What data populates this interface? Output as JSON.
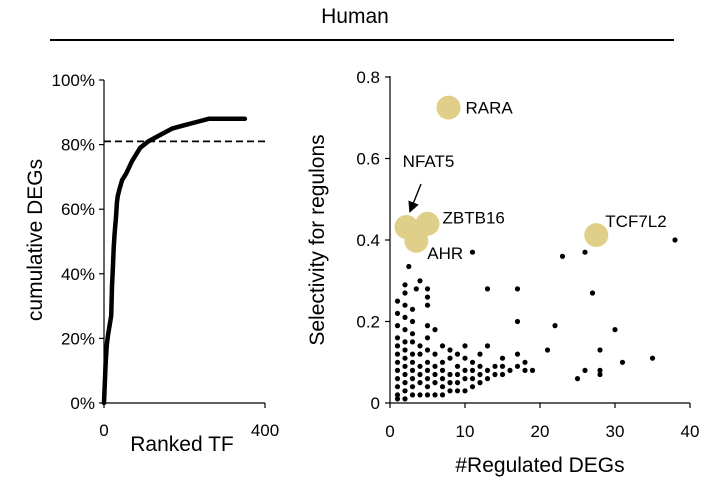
{
  "figure": {
    "title": "Human"
  },
  "chart_data": [
    {
      "type": "line",
      "name": "cumulative",
      "xlabel": "Ranked TF",
      "ylabel": "cumulative DEGs",
      "xlim": [
        0,
        400
      ],
      "ylim": [
        0,
        100
      ],
      "x_ticks": [
        "0",
        "400"
      ],
      "y_ticks": [
        "0%",
        "20%",
        "40%",
        "60%",
        "80%",
        "100%"
      ],
      "reference_line": {
        "y": 81,
        "style": "dashed"
      },
      "series": [
        {
          "name": "cumulative DEGs",
          "x": [
            0,
            2,
            4,
            7,
            10,
            14,
            18,
            20,
            22,
            24,
            26,
            28,
            30,
            32,
            34,
            38,
            45,
            55,
            70,
            90,
            110,
            140,
            170,
            200,
            230,
            260,
            300,
            350
          ],
          "y": [
            0,
            6,
            12,
            18,
            21,
            24,
            27,
            36,
            42,
            48,
            52,
            55,
            58,
            62,
            64,
            66,
            69,
            71,
            75,
            79,
            81,
            83,
            85,
            86,
            87,
            88,
            88,
            88
          ]
        }
      ]
    },
    {
      "type": "scatter",
      "name": "selectivity",
      "xlabel": "#Regulated DEGs",
      "ylabel": "Selectivity for regulons",
      "xlim": [
        0,
        40
      ],
      "ylim": [
        0,
        0.8
      ],
      "x_ticks": [
        "0",
        "10",
        "20",
        "30",
        "40"
      ],
      "y_ticks": [
        "0",
        "0.2",
        "0.4",
        "0.6",
        "0.8"
      ],
      "highlighted": [
        {
          "label": "RARA",
          "x": 7.8,
          "y": 0.725
        },
        {
          "label": "NFAT5",
          "x": 2.2,
          "y": 0.432
        },
        {
          "label": "ZBTB16",
          "x": 5.0,
          "y": 0.44
        },
        {
          "label": "AHR",
          "x": 3.5,
          "y": 0.398
        },
        {
          "label": "TCF7L2",
          "x": 27.5,
          "y": 0.412
        }
      ],
      "points": [
        [
          1,
          0.01
        ],
        [
          1,
          0.02
        ],
        [
          1,
          0.04
        ],
        [
          1,
          0.06
        ],
        [
          1,
          0.08
        ],
        [
          1,
          0.1
        ],
        [
          1,
          0.12
        ],
        [
          1,
          0.14
        ],
        [
          1,
          0.16
        ],
        [
          1,
          0.19
        ],
        [
          1,
          0.22
        ],
        [
          1,
          0.25
        ],
        [
          2,
          0.01
        ],
        [
          2,
          0.03
        ],
        [
          2,
          0.05
        ],
        [
          2,
          0.07
        ],
        [
          2,
          0.09
        ],
        [
          2,
          0.11
        ],
        [
          2,
          0.13
        ],
        [
          2,
          0.15
        ],
        [
          2,
          0.18
        ],
        [
          2,
          0.21
        ],
        [
          2,
          0.24
        ],
        [
          2,
          0.27
        ],
        [
          2,
          0.29
        ],
        [
          3,
          0.02
        ],
        [
          3,
          0.04
        ],
        [
          3,
          0.06
        ],
        [
          3,
          0.08
        ],
        [
          3,
          0.1
        ],
        [
          3,
          0.12
        ],
        [
          3,
          0.15
        ],
        [
          3,
          0.17
        ],
        [
          3,
          0.2
        ],
        [
          3,
          0.23
        ],
        [
          4,
          0.02
        ],
        [
          4,
          0.05
        ],
        [
          4,
          0.07
        ],
        [
          4,
          0.09
        ],
        [
          4,
          0.12
        ],
        [
          4,
          0.14
        ],
        [
          5,
          0.02
        ],
        [
          5,
          0.04
        ],
        [
          5,
          0.06
        ],
        [
          5,
          0.08
        ],
        [
          5,
          0.1
        ],
        [
          5,
          0.13
        ],
        [
          5,
          0.16
        ],
        [
          5,
          0.19
        ],
        [
          5,
          0.24
        ],
        [
          5,
          0.26
        ],
        [
          5,
          0.28
        ],
        [
          6,
          0.02
        ],
        [
          6,
          0.05
        ],
        [
          6,
          0.07
        ],
        [
          6,
          0.09
        ],
        [
          6,
          0.12
        ],
        [
          6,
          0.18
        ],
        [
          7,
          0.02
        ],
        [
          7,
          0.04
        ],
        [
          7,
          0.06
        ],
        [
          7,
          0.08
        ],
        [
          7,
          0.1
        ],
        [
          7,
          0.14
        ],
        [
          8,
          0.03
        ],
        [
          8,
          0.05
        ],
        [
          8,
          0.07
        ],
        [
          8,
          0.11
        ],
        [
          8,
          0.13
        ],
        [
          9,
          0.03
        ],
        [
          9,
          0.05
        ],
        [
          9,
          0.07
        ],
        [
          9,
          0.09
        ],
        [
          9,
          0.12
        ],
        [
          10,
          0.03
        ],
        [
          10,
          0.06
        ],
        [
          10,
          0.08
        ],
        [
          10,
          0.11
        ],
        [
          10,
          0.14
        ],
        [
          11,
          0.04
        ],
        [
          11,
          0.06
        ],
        [
          11,
          0.08
        ],
        [
          11,
          0.1
        ],
        [
          11,
          0.37
        ],
        [
          12,
          0.05
        ],
        [
          12,
          0.07
        ],
        [
          12,
          0.09
        ],
        [
          12,
          0.12
        ],
        [
          13,
          0.06
        ],
        [
          13,
          0.08
        ],
        [
          13,
          0.14
        ],
        [
          13,
          0.28
        ],
        [
          14,
          0.07
        ],
        [
          14,
          0.09
        ],
        [
          15,
          0.07
        ],
        [
          15,
          0.11
        ],
        [
          16,
          0.08
        ],
        [
          17,
          0.09
        ],
        [
          17,
          0.28
        ],
        [
          17,
          0.2
        ],
        [
          18,
          0.08
        ],
        [
          18,
          0.1
        ],
        [
          19,
          0.08
        ],
        [
          23,
          0.36
        ],
        [
          25,
          0.06
        ],
        [
          26,
          0.08
        ],
        [
          26,
          0.37
        ],
        [
          27,
          0.27
        ],
        [
          28,
          0.07
        ],
        [
          28,
          0.08
        ],
        [
          28,
          0.13
        ],
        [
          30,
          0.18
        ],
        [
          31,
          0.1
        ],
        [
          35,
          0.11
        ],
        [
          38,
          0.4
        ],
        [
          2.5,
          0.335
        ],
        [
          4,
          0.3
        ],
        [
          3.5,
          0.28
        ],
        [
          21,
          0.13
        ],
        [
          22,
          0.19
        ],
        [
          17,
          0.12
        ],
        [
          15,
          0.09
        ]
      ]
    }
  ],
  "style": {
    "highlight_color": "#e0cf88",
    "point_color": "#000000",
    "line_color": "#000000"
  }
}
